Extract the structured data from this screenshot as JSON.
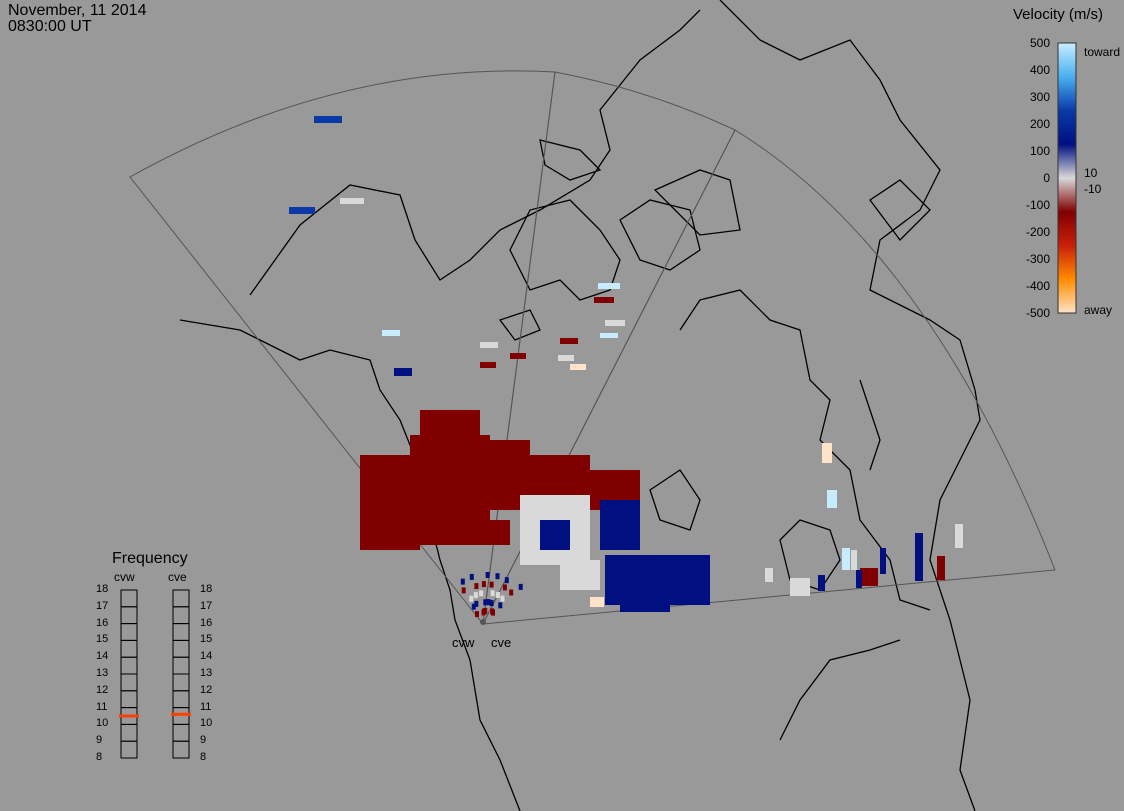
{
  "header": {
    "date": "November, 11 2014",
    "time": "0830:00 UT"
  },
  "velocity_scale": {
    "title": "Velocity (m/s)",
    "ticks": [
      "500",
      "400",
      "300",
      "200",
      "100",
      "0",
      "-100",
      "-200",
      "-300",
      "-400",
      "-500"
    ],
    "inner_labels": [
      "10",
      "-10"
    ],
    "end_labels": {
      "top": "toward",
      "bottom": "away"
    },
    "colors": {
      "toward": "#c8ecff",
      "mid_blue": "#0a3aa8",
      "low_blue": "#001080",
      "gray": "#d9d9d9",
      "low_red": "#800000",
      "mid_red": "#c8200a",
      "orange": "#ff8c00",
      "away": "#ffe3c8"
    }
  },
  "radars": {
    "west": "cvw",
    "east": "cve"
  },
  "frequency_panel": {
    "title": "Frequency",
    "columns": [
      "cvw",
      "cve"
    ],
    "levels": [
      "18",
      "17",
      "16",
      "15",
      "14",
      "13",
      "12",
      "11",
      "10",
      "9",
      "8"
    ],
    "cvw_value": 10.5,
    "cve_value": 10.6,
    "marker_color": "#ff4000"
  }
}
